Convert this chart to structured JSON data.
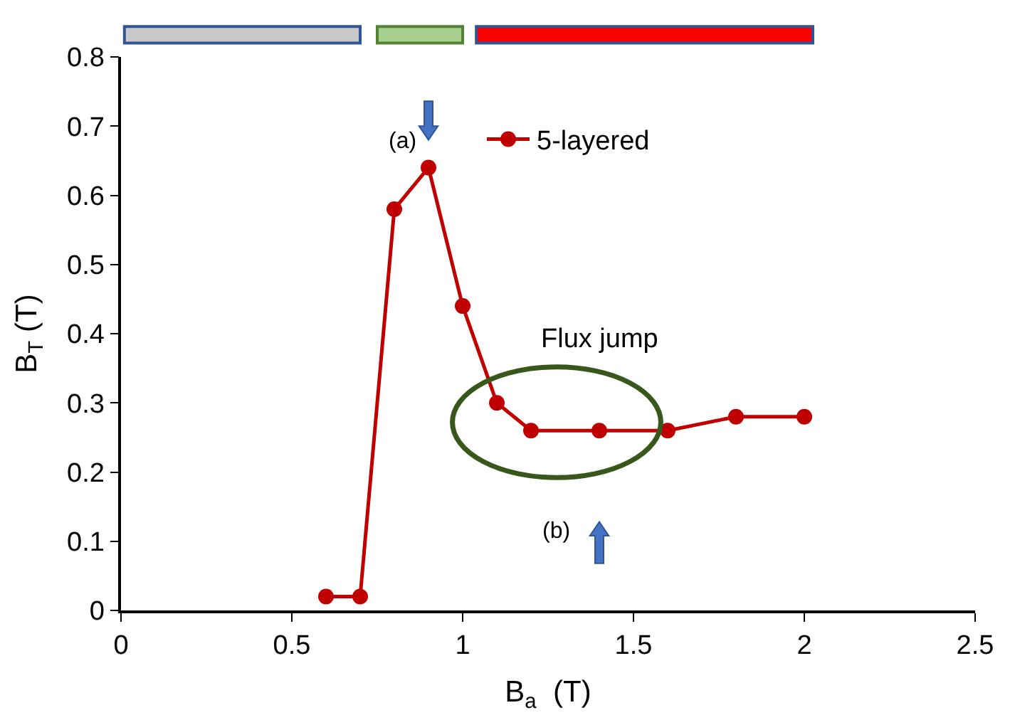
{
  "chart_data": {
    "type": "line",
    "xlabel": "B$_{a}$  (T)",
    "ylabel": "B$_{T}$ (T)",
    "x": [
      0.6,
      0.7,
      0.8,
      0.9,
      1.0,
      1.1,
      1.2,
      1.4,
      1.6,
      1.8,
      2.0
    ],
    "series": [
      {
        "name": "5-layered",
        "color": "#c00000",
        "values": [
          0.02,
          0.02,
          0.58,
          0.64,
          0.44,
          0.3,
          0.26,
          0.26,
          0.26,
          0.28,
          0.28
        ]
      }
    ],
    "xlim": [
      0,
      2.5
    ],
    "xticks": [
      0,
      0.5,
      1,
      1.5,
      2,
      2.5
    ],
    "ylim": [
      0,
      0.8
    ],
    "yticks": [
      0,
      0.1,
      0.2,
      0.3,
      0.4,
      0.5,
      0.6,
      0.7,
      0.8
    ],
    "annotations": [
      "(a)",
      "(b)",
      "Flux jump"
    ],
    "marker": "circle",
    "line_style": "solid",
    "legend": "top"
  }
}
